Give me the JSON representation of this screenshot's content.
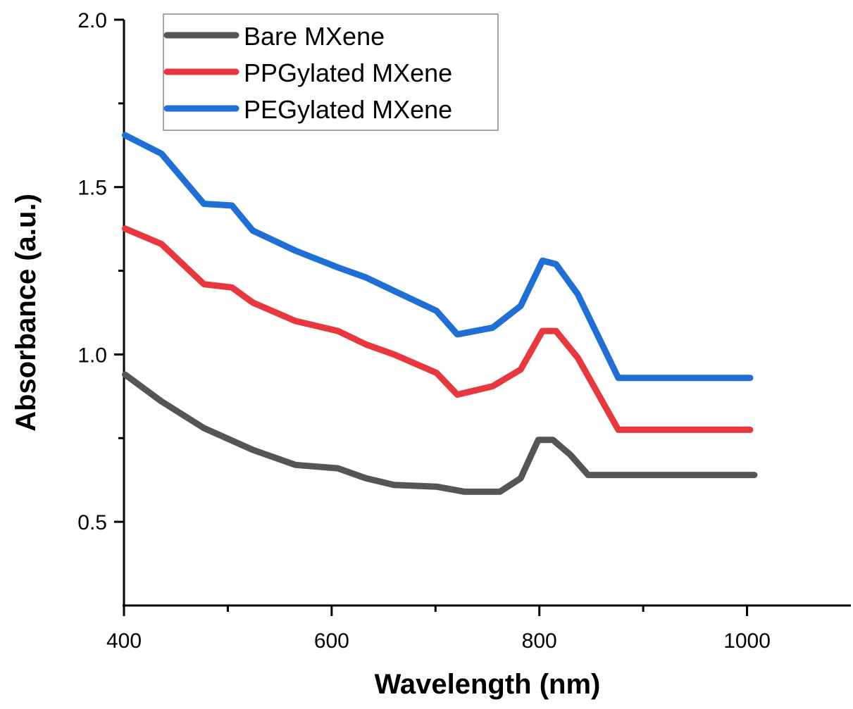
{
  "chart_data": {
    "type": "line",
    "title": "",
    "xlabel": "Wavelength (nm)",
    "ylabel": "Absorbance (a.u.)",
    "xlim": [
      400,
      1100
    ],
    "ylim": [
      0.25,
      2.0
    ],
    "x_ticks": [
      400,
      600,
      800,
      1000
    ],
    "x_tick_labels": [
      "400",
      "600",
      "800",
      "1000"
    ],
    "x_minor_ticks": [
      500,
      700,
      900
    ],
    "y_ticks": [
      0.5,
      1.0,
      1.5,
      2.0
    ],
    "y_tick_labels": [
      "0.5",
      "1.0",
      "1.5",
      "2.0"
    ],
    "y_minor_ticks": [
      0.75,
      1.25,
      1.75
    ],
    "grid": false,
    "legend_position": "top-left",
    "series": [
      {
        "name": "Bare MXene",
        "color": "#555555",
        "x": [
          401,
          436,
          477,
          524,
          565,
          606,
          633,
          660,
          701,
          728,
          762,
          782,
          799,
          813,
          830,
          847,
          1007
        ],
        "y": [
          0.94,
          0.86,
          0.78,
          0.715,
          0.67,
          0.66,
          0.63,
          0.61,
          0.605,
          0.59,
          0.59,
          0.63,
          0.745,
          0.745,
          0.7,
          0.64,
          0.64
        ]
      },
      {
        "name": "PPGylated MXene",
        "color": "#e8383d",
        "x": [
          401,
          436,
          477,
          504,
          524,
          565,
          606,
          633,
          660,
          701,
          721,
          755,
          782,
          803,
          816,
          837,
          876,
          1003
        ],
        "y": [
          1.376,
          1.33,
          1.21,
          1.2,
          1.155,
          1.1,
          1.07,
          1.03,
          1.0,
          0.945,
          0.88,
          0.905,
          0.955,
          1.07,
          1.07,
          0.99,
          0.775,
          0.775
        ]
      },
      {
        "name": "PEGylated MXene",
        "color": "#1f6fd6",
        "x": [
          401,
          436,
          477,
          504,
          524,
          565,
          606,
          633,
          660,
          701,
          721,
          755,
          782,
          803,
          816,
          837,
          876,
          1003
        ],
        "y": [
          1.655,
          1.6,
          1.45,
          1.445,
          1.37,
          1.31,
          1.26,
          1.23,
          1.19,
          1.13,
          1.06,
          1.08,
          1.145,
          1.28,
          1.27,
          1.18,
          0.93,
          0.93
        ]
      }
    ]
  }
}
